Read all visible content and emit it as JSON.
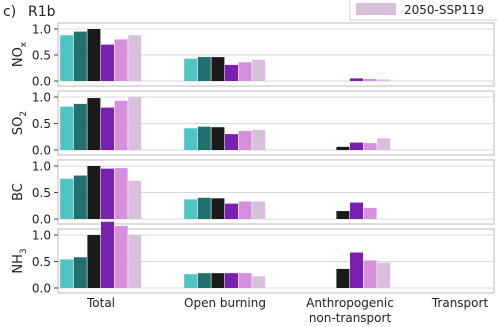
{
  "chart_data": {
    "type": "bar",
    "panel_label": "c)",
    "title": "R1b",
    "categories": [
      "Total",
      "Open burning",
      "Anthropogenic non-transport",
      "Transport"
    ],
    "category_lines": [
      [
        "Total"
      ],
      [
        "Open burning"
      ],
      [
        "Anthropogenic",
        "non-transport"
      ],
      [
        "Transport"
      ]
    ],
    "legend": {
      "placement": "top-right",
      "entries": [
        {
          "label": "2050-SSP119",
          "color": "#d8bfdc"
        }
      ]
    },
    "series_colors": [
      "#4fc4c4",
      "#22706e",
      "#1a1a1a",
      "#7a1fb0",
      "#d68fdc",
      "#d8bfdc"
    ],
    "panels": [
      {
        "ylabel_main": "NO",
        "ylabel_sub": "x",
        "sub_position": "sub",
        "ylim": [
          0,
          1.05
        ],
        "ticks": [
          {
            "v": 0,
            "l": "0.0"
          },
          {
            "v": 0.5,
            "l": "0.5"
          },
          {
            "v": 1.0,
            "l": "1.0"
          }
        ],
        "values": [
          [
            0.88,
            0.95,
            1.0,
            0.7,
            0.8,
            0.88
          ],
          [
            0.43,
            0.46,
            0.46,
            0.31,
            0.36,
            0.41
          ],
          [
            null,
            null,
            null,
            0.05,
            0.04,
            0.03
          ],
          [
            null,
            null,
            null,
            null,
            null,
            null
          ]
        ]
      },
      {
        "ylabel_main": "SO",
        "ylabel_sub": "2",
        "sub_position": "sub",
        "ylim": [
          0,
          1.05
        ],
        "ticks": [
          {
            "v": 0,
            "l": "0.0"
          },
          {
            "v": 0.5,
            "l": "0.5"
          },
          {
            "v": 1.0,
            "l": "1.0"
          }
        ],
        "values": [
          [
            0.82,
            0.87,
            0.98,
            0.8,
            0.93,
            1.0
          ],
          [
            0.41,
            0.44,
            0.43,
            0.3,
            0.36,
            0.38
          ],
          [
            null,
            null,
            0.06,
            0.14,
            0.13,
            0.22
          ],
          [
            null,
            null,
            null,
            null,
            null,
            null
          ]
        ]
      },
      {
        "ylabel_main": "BC",
        "ylabel_sub": "",
        "sub_position": "sub",
        "ylim": [
          0,
          1.05
        ],
        "ticks": [
          {
            "v": 0,
            "l": "0.0"
          },
          {
            "v": 0.5,
            "l": "0.5"
          },
          {
            "v": 1.0,
            "l": "1.0"
          }
        ],
        "values": [
          [
            0.76,
            0.82,
            1.0,
            0.95,
            0.96,
            0.72
          ],
          [
            0.37,
            0.4,
            0.39,
            0.29,
            0.33,
            0.33
          ],
          [
            null,
            null,
            0.15,
            0.31,
            0.21,
            null
          ],
          [
            null,
            null,
            null,
            null,
            null,
            null
          ]
        ]
      },
      {
        "ylabel_main": "NH",
        "ylabel_sub": "3",
        "sub_position": "sub",
        "ylim": [
          0,
          1.35
        ],
        "ticks": [
          {
            "v": 0,
            "l": "0.0"
          },
          {
            "v": 0.5,
            "l": "0.5"
          },
          {
            "v": 1.0,
            "l": "1.0"
          }
        ],
        "values": [
          [
            0.54,
            0.58,
            1.0,
            1.25,
            1.17,
            1.0
          ],
          [
            0.26,
            0.28,
            0.28,
            0.28,
            0.28,
            0.22
          ],
          [
            null,
            null,
            0.36,
            0.67,
            0.52,
            0.48
          ],
          [
            null,
            null,
            null,
            null,
            null,
            null
          ]
        ]
      }
    ]
  }
}
